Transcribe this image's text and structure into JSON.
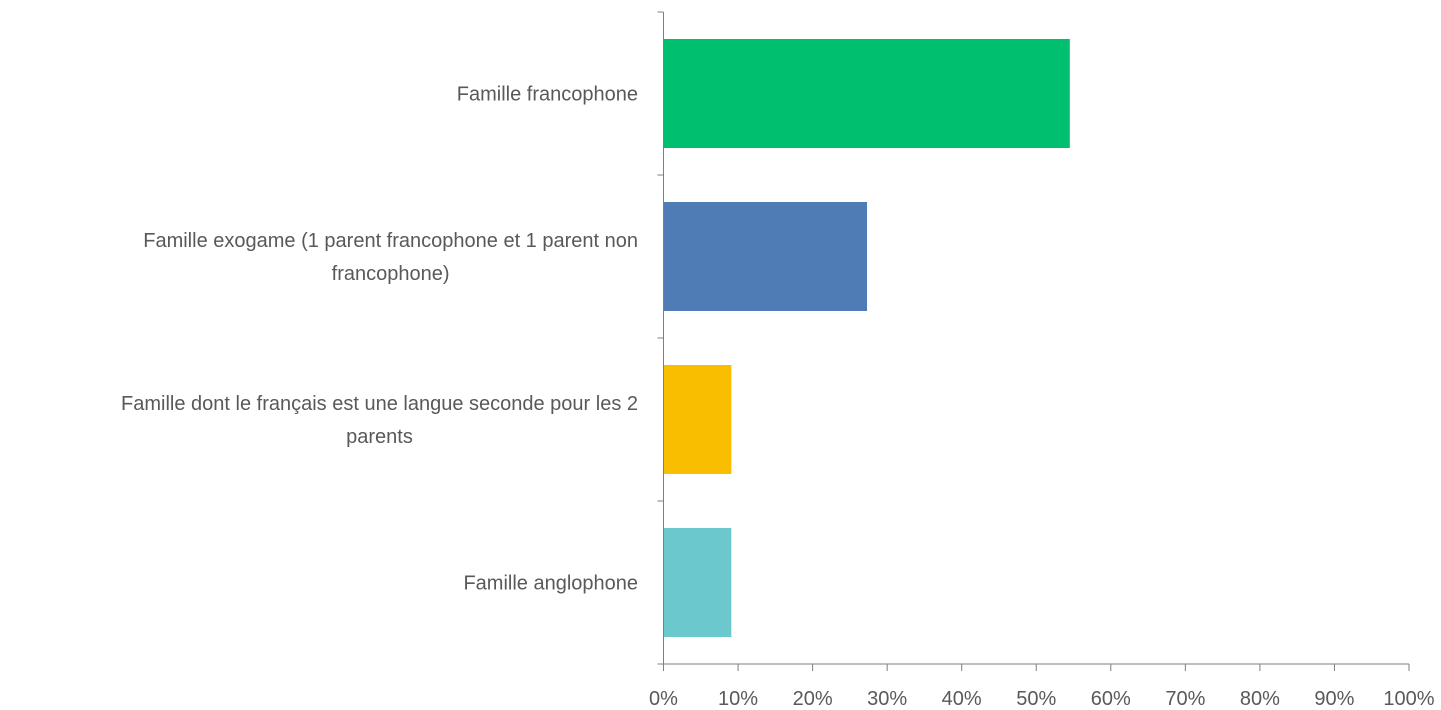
{
  "chart_data": {
    "type": "bar",
    "orientation": "horizontal",
    "categories": [
      [
        "Famille francophone"
      ],
      [
        "Famille exogame (1 parent francophone et 1 parent non",
        "francophone)"
      ],
      [
        "Famille dont le français est une langue seconde pour les 2",
        "parents"
      ],
      [
        "Famille anglophone"
      ]
    ],
    "values": [
      54.5,
      27.3,
      9.1,
      9.1
    ],
    "colors": [
      "#00BF6F",
      "#507CB6",
      "#F9BE00",
      "#6BC8CD"
    ],
    "xlim": [
      0,
      100
    ],
    "xticks": [
      "0%",
      "10%",
      "20%",
      "30%",
      "40%",
      "50%",
      "60%",
      "70%",
      "80%",
      "90%",
      "100%"
    ],
    "title": "",
    "xlabel": "",
    "ylabel": "",
    "grid": false,
    "legend": "none"
  }
}
